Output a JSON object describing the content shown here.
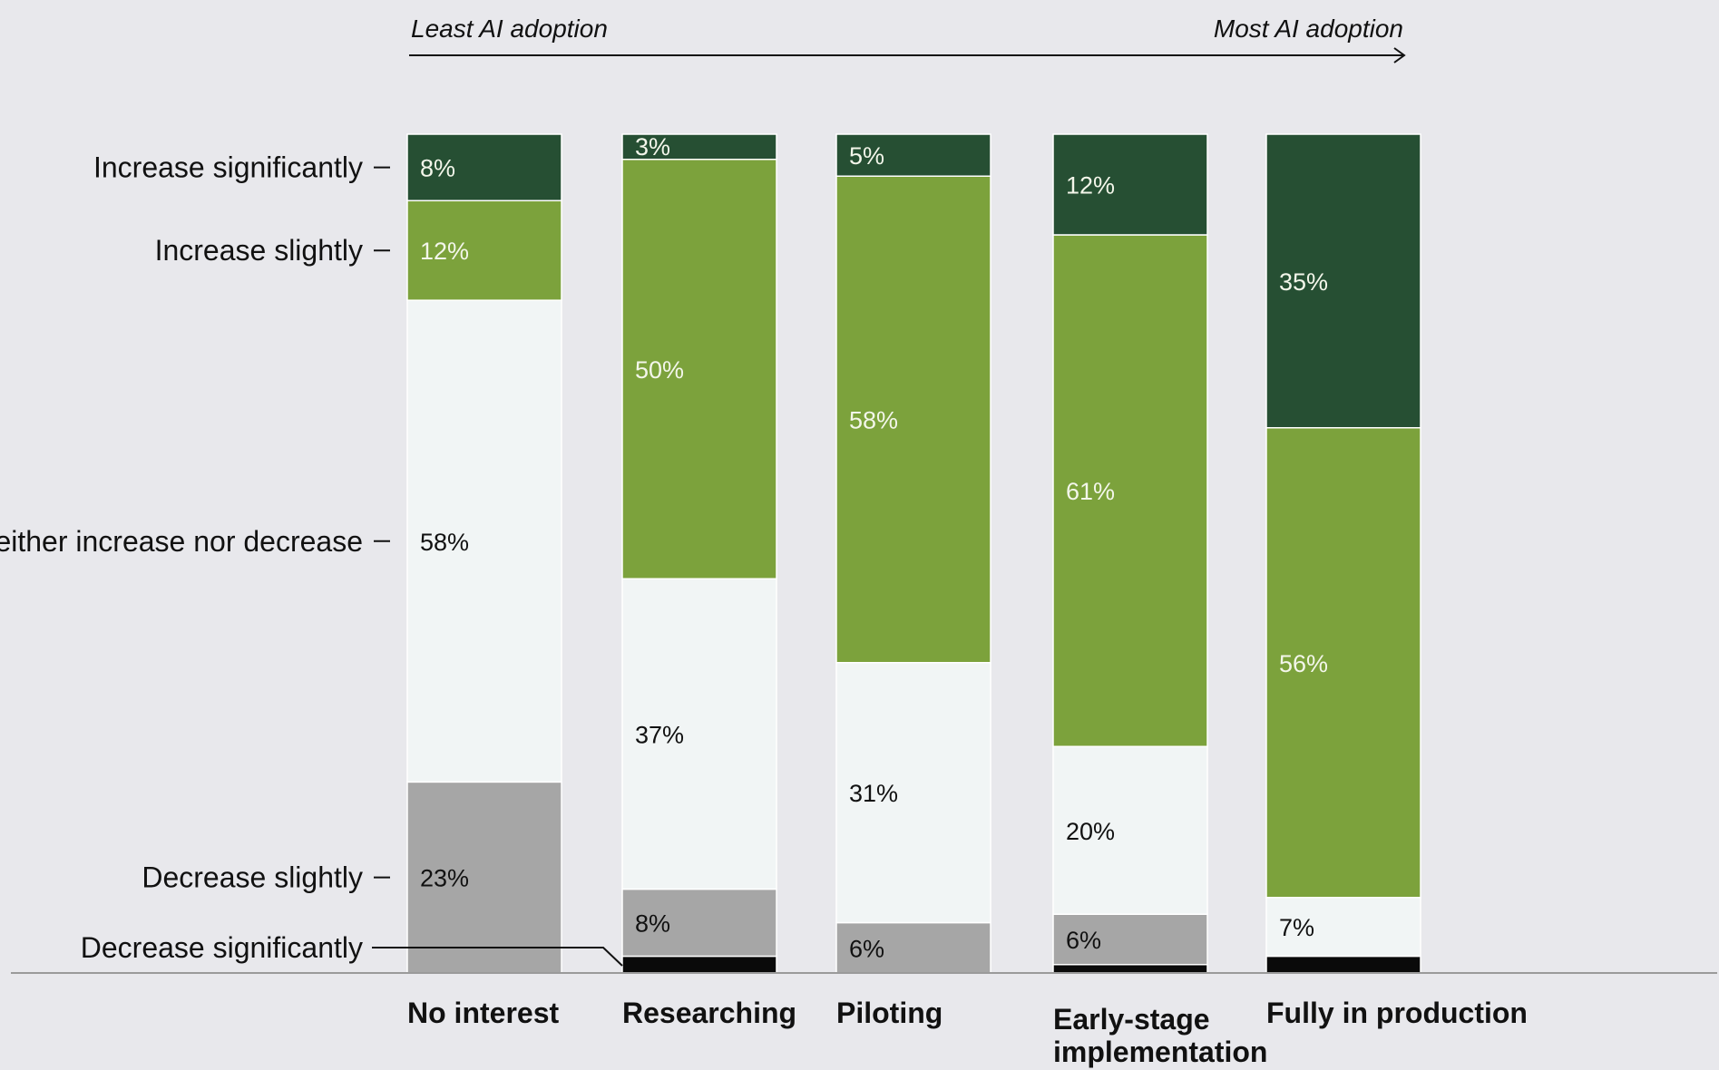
{
  "chart_data": {
    "type": "bar",
    "stacked": true,
    "normalized": true,
    "adoption_axis": {
      "left_label": "Least AI adoption",
      "right_label": "Most AI adoption"
    },
    "categories": [
      "No interest",
      "Researching",
      "Piloting",
      "Early-stage implementation",
      "Fully in production"
    ],
    "series": [
      {
        "name": "Decrease significantly",
        "color": "#0a0a0a",
        "values": [
          0,
          2,
          0,
          1,
          2
        ]
      },
      {
        "name": "Decrease slightly",
        "color": "#a6a6a6",
        "values": [
          23,
          8,
          6,
          6,
          0
        ]
      },
      {
        "name": "Neither increase nor decrease",
        "color": "#f1f5f5",
        "values": [
          58,
          37,
          31,
          20,
          7
        ]
      },
      {
        "name": "Increase slightly",
        "color": "#7ca23c",
        "values": [
          12,
          50,
          58,
          61,
          56
        ]
      },
      {
        "name": "Increase significantly",
        "color": "#264f33",
        "values": [
          8,
          3,
          5,
          12,
          35
        ]
      }
    ],
    "segment_labels": [
      [
        "",
        "23%",
        "58%",
        "12%",
        "8%"
      ],
      [
        "",
        "8%",
        "37%",
        "50%",
        "3%"
      ],
      [
        "",
        "6%",
        "31%",
        "58%",
        "5%"
      ],
      [
        "",
        "6%",
        "20%",
        "61%",
        "12%"
      ],
      [
        "",
        "",
        "7%",
        "56%",
        "35%"
      ]
    ],
    "label_colors": {
      "#0a0a0a": "#ffffff",
      "#a6a6a6": "#111111",
      "#f1f5f5": "#111111",
      "#7ca23c": "#f3f6ea",
      "#264f33": "#f3f6ea"
    },
    "ylim": [
      0,
      100
    ]
  }
}
